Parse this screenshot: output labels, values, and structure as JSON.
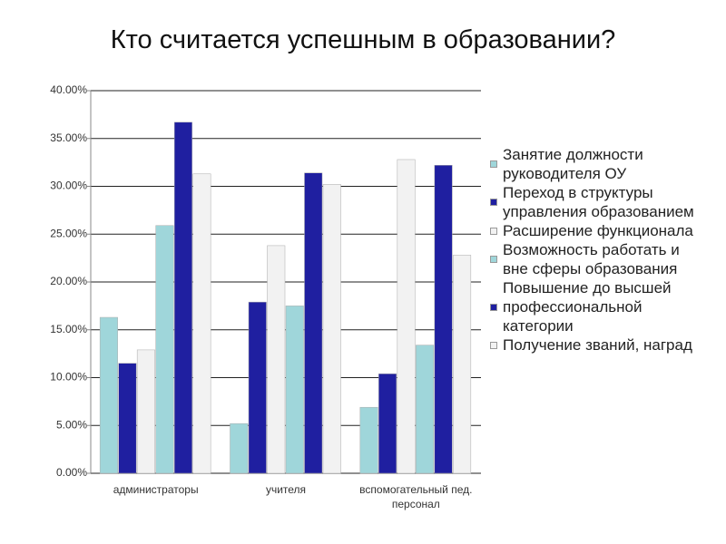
{
  "chart_data": {
    "type": "bar",
    "title": "Кто считается успешным в образовании?",
    "categories": [
      "администраторы",
      "учителя",
      "вспомогательный пед. персонал"
    ],
    "series": [
      {
        "name": "Занятие должности руководителя ОУ",
        "color": "#9fd6da",
        "values": [
          16.3,
          5.2,
          6.9
        ]
      },
      {
        "name": "Переход в структуры управления образованием",
        "color": "#1f1fa0",
        "values": [
          11.5,
          17.9,
          10.4
        ]
      },
      {
        "name": "Расширение функционала",
        "color": "#f2f2f2",
        "values": [
          12.9,
          23.8,
          32.8
        ]
      },
      {
        "name": "Возможность работать и вне сферы образования",
        "color": "#9fd6da",
        "values": [
          25.9,
          17.5,
          13.4
        ]
      },
      {
        "name": "Повышение до высшей профессиональной категории",
        "color": "#1f1fa0",
        "values": [
          36.7,
          31.4,
          32.2
        ]
      },
      {
        "name": "Получение званий, наград",
        "color": "#f2f2f2",
        "values": [
          31.3,
          30.2,
          22.8
        ]
      }
    ],
    "ylim": [
      0,
      40
    ],
    "yticks": [
      {
        "value": 0,
        "label": "0.00%"
      },
      {
        "value": 5,
        "label": "5.00%"
      },
      {
        "value": 10,
        "label": "10.00%"
      },
      {
        "value": 15,
        "label": "15.00%"
      },
      {
        "value": 20,
        "label": "20.00%"
      },
      {
        "value": 25,
        "label": "25.00%"
      },
      {
        "value": 30,
        "label": "30.00%"
      },
      {
        "value": 35,
        "label": "35.00%"
      },
      {
        "value": 40,
        "label": "40.00%"
      }
    ],
    "grid": true,
    "legend": "right"
  }
}
